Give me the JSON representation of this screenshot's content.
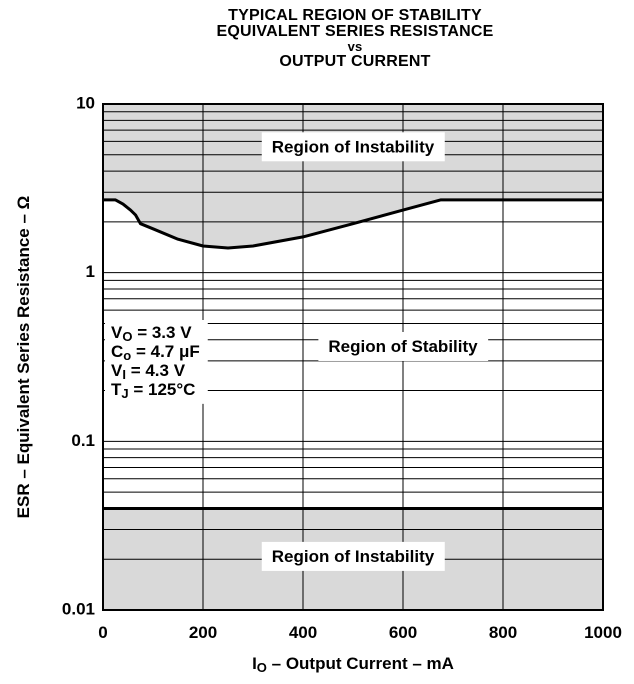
{
  "title": {
    "line1": "TYPICAL REGION OF STABILITY",
    "line2": "EQUIVALENT SERIES RESISTANCE",
    "line3": "vs",
    "line4": "OUTPUT CURRENT"
  },
  "colors": {
    "instability_fill": "#d9d9d9",
    "stability_fill": "#ffffff",
    "curve": "#000000",
    "grid": "#000000"
  },
  "conditions": {
    "vo_sym": "V",
    "vo_sub": "O",
    "vo_val": " = 3.3 V",
    "co_sym": "C",
    "co_sub": "o",
    "co_val": " = 4.7 μF",
    "vi_sym": "V",
    "vi_sub": "I",
    "vi_val": " = 4.3 V",
    "tj_sym": "T",
    "tj_sub": "J",
    "tj_val": " = 125°C"
  },
  "chart_data": {
    "type": "area",
    "title": "TYPICAL REGION OF STABILITY EQUIVALENT SERIES RESISTANCE vs OUTPUT CURRENT",
    "xlabel_pre": "I",
    "xlabel_sub": "O",
    "xlabel_post": " – Output Current – mA",
    "ylabel": "ESR – Equivalent Series Resistance – Ω",
    "xlim": [
      0,
      1000
    ],
    "ylim": [
      0.01,
      10
    ],
    "y_scale": "log",
    "grid": true,
    "x_ticks": [
      "0",
      "200",
      "400",
      "600",
      "800",
      "1000"
    ],
    "x_tick_values": [
      0,
      200,
      400,
      600,
      800,
      1000
    ],
    "y_ticks": [
      "0.01",
      "0.1",
      "1",
      "10"
    ],
    "y_tick_values": [
      0.01,
      0.1,
      1,
      10
    ],
    "upper_boundary": {
      "x": [
        0,
        25,
        40,
        55,
        65,
        75,
        100,
        150,
        200,
        250,
        300,
        400,
        500,
        600,
        675,
        700,
        800,
        1000
      ],
      "y": [
        2.7,
        2.7,
        2.55,
        2.35,
        2.2,
        1.95,
        1.82,
        1.58,
        1.44,
        1.4,
        1.44,
        1.63,
        1.95,
        2.35,
        2.7,
        2.7,
        2.7,
        2.7
      ]
    },
    "lower_boundary": {
      "x": [
        0,
        1000
      ],
      "y": [
        0.04,
        0.04
      ]
    },
    "annotations": [
      {
        "text": "Region of Instability",
        "x": 500,
        "y": 5.5
      },
      {
        "text": "Region of Stability",
        "x": 600,
        "y": 0.36
      },
      {
        "text": "Region of Instability",
        "x": 500,
        "y": 0.0205
      }
    ]
  }
}
